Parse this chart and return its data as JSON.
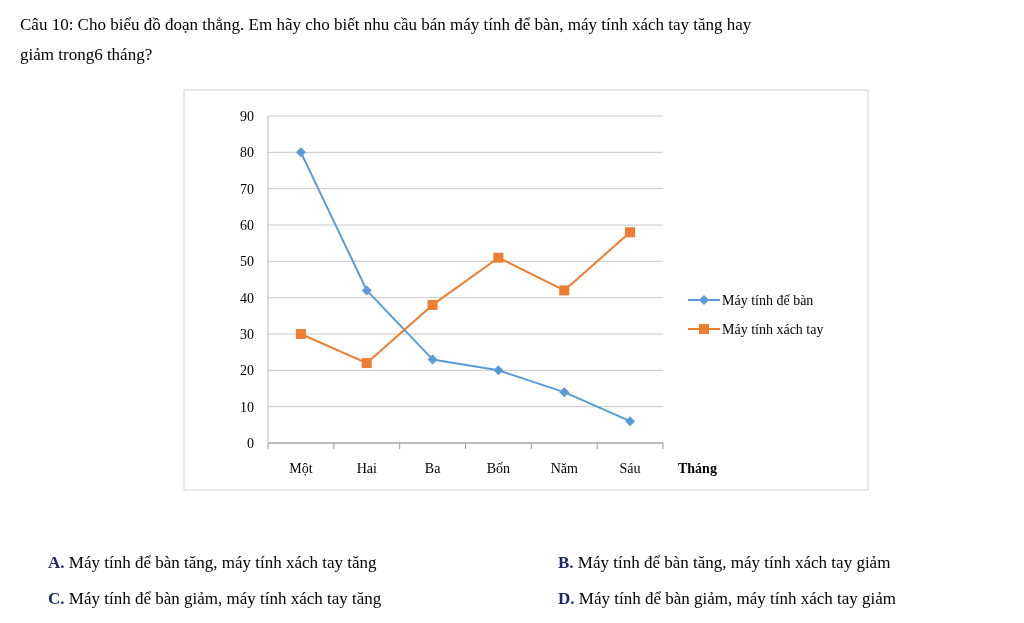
{
  "chart_data": {
    "type": "line",
    "title": "Câu 10: Cho biểu đồ đoạn thẳng. Em hãy cho biết nhu cầu bán máy tính để bàn, máy tính xách tay tăng hay giảm trong6 tháng?",
    "xlabel": "Tháng",
    "categories": [
      "Một",
      "Hai",
      "Ba",
      "Bốn",
      "Năm",
      "Sáu"
    ],
    "series": [
      {
        "name": "Máy tính để bàn",
        "color": "#5b9bd5",
        "marker": "diamond",
        "values": [
          80,
          42,
          23,
          20,
          14,
          6
        ]
      },
      {
        "name": "Máy tính xách tay",
        "color": "#ed7d31",
        "marker": "square",
        "values": [
          30,
          22,
          38,
          51,
          42,
          58
        ]
      }
    ],
    "ylim": [
      0,
      90
    ],
    "yticks": [
      0,
      10,
      20,
      30,
      40,
      50,
      60,
      70,
      80,
      90
    ],
    "grid": "y",
    "legend": "right",
    "annotations": [
      "A. Máy tính để bàn tăng, máy tính xách tay tăng",
      "B. Máy tính để bàn tăng, máy tính xách tay giảm",
      "C. Máy tính để bàn giảm, máy tính xách tay tăng",
      "D. Máy tính để bàn giảm, máy tính xách tay giảm"
    ]
  }
}
